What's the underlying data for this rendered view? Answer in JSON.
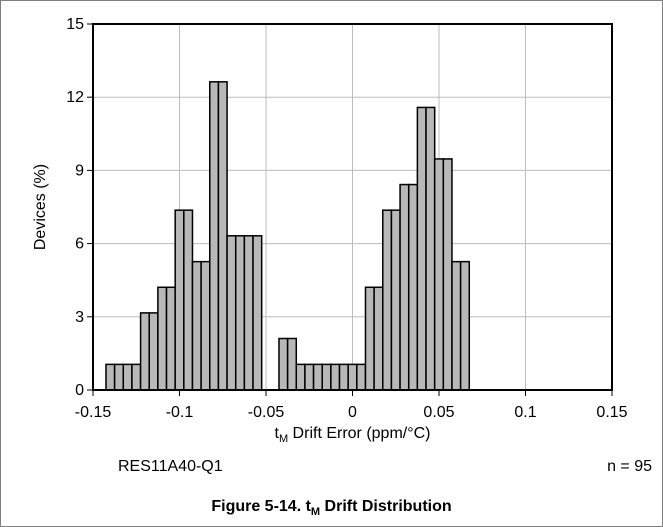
{
  "chart_data": {
    "type": "histogram",
    "ylabel": "Devices (%)",
    "xlabel_main": "t",
    "xlabel_sub": "M",
    "xlabel_rest": " Drift Error (ppm/°C)",
    "xlim": [
      -0.15,
      0.15
    ],
    "ylim": [
      0,
      15
    ],
    "x_ticks": [
      -0.15,
      -0.1,
      -0.05,
      0,
      0.05,
      0.1,
      0.15
    ],
    "x_tick_labels": [
      "-0.15",
      "-0.1",
      "-0.05",
      "0",
      "0.05",
      "0.1",
      "0.15"
    ],
    "y_ticks": [
      0,
      3,
      6,
      9,
      12,
      15
    ],
    "y_tick_labels": [
      "0",
      "3",
      "6",
      "9",
      "12",
      "15"
    ],
    "grid": true,
    "bin_width": 0.005,
    "bins": [
      {
        "x": -0.14,
        "value": 1.05
      },
      {
        "x": -0.135,
        "value": 1.05
      },
      {
        "x": -0.13,
        "value": 1.05
      },
      {
        "x": -0.125,
        "value": 1.05
      },
      {
        "x": -0.12,
        "value": 3.16
      },
      {
        "x": -0.115,
        "value": 3.16
      },
      {
        "x": -0.11,
        "value": 4.21
      },
      {
        "x": -0.105,
        "value": 4.21
      },
      {
        "x": -0.1,
        "value": 7.37
      },
      {
        "x": -0.095,
        "value": 7.37
      },
      {
        "x": -0.09,
        "value": 5.26
      },
      {
        "x": -0.085,
        "value": 5.26
      },
      {
        "x": -0.08,
        "value": 12.63
      },
      {
        "x": -0.075,
        "value": 12.63
      },
      {
        "x": -0.07,
        "value": 6.32
      },
      {
        "x": -0.065,
        "value": 6.32
      },
      {
        "x": -0.06,
        "value": 6.32
      },
      {
        "x": -0.055,
        "value": 6.32
      },
      {
        "x": -0.04,
        "value": 2.11
      },
      {
        "x": -0.035,
        "value": 2.11
      },
      {
        "x": -0.03,
        "value": 1.05
      },
      {
        "x": -0.025,
        "value": 1.05
      },
      {
        "x": -0.02,
        "value": 1.05
      },
      {
        "x": -0.015,
        "value": 1.05
      },
      {
        "x": -0.01,
        "value": 1.05
      },
      {
        "x": -0.005,
        "value": 1.05
      },
      {
        "x": 0.0,
        "value": 1.05
      },
      {
        "x": 0.005,
        "value": 1.05
      },
      {
        "x": 0.01,
        "value": 4.21
      },
      {
        "x": 0.015,
        "value": 4.21
      },
      {
        "x": 0.02,
        "value": 7.37
      },
      {
        "x": 0.025,
        "value": 7.37
      },
      {
        "x": 0.03,
        "value": 8.42
      },
      {
        "x": 0.035,
        "value": 8.42
      },
      {
        "x": 0.04,
        "value": 11.58
      },
      {
        "x": 0.045,
        "value": 11.58
      },
      {
        "x": 0.05,
        "value": 9.47
      },
      {
        "x": 0.055,
        "value": 9.47
      },
      {
        "x": 0.06,
        "value": 5.26
      },
      {
        "x": 0.065,
        "value": 5.26
      }
    ]
  },
  "notes": {
    "device": "RES11A40-Q1",
    "sample_count": "n = 95"
  },
  "caption": {
    "prefix": "Figure 5-14. t",
    "sub": "M",
    "suffix": " Drift Distribution"
  },
  "colors": {
    "bar_fill": "#b8b8b8",
    "bar_stroke": "#000000",
    "grid": "#bdbdbd",
    "frame": "#7f7f7f"
  }
}
